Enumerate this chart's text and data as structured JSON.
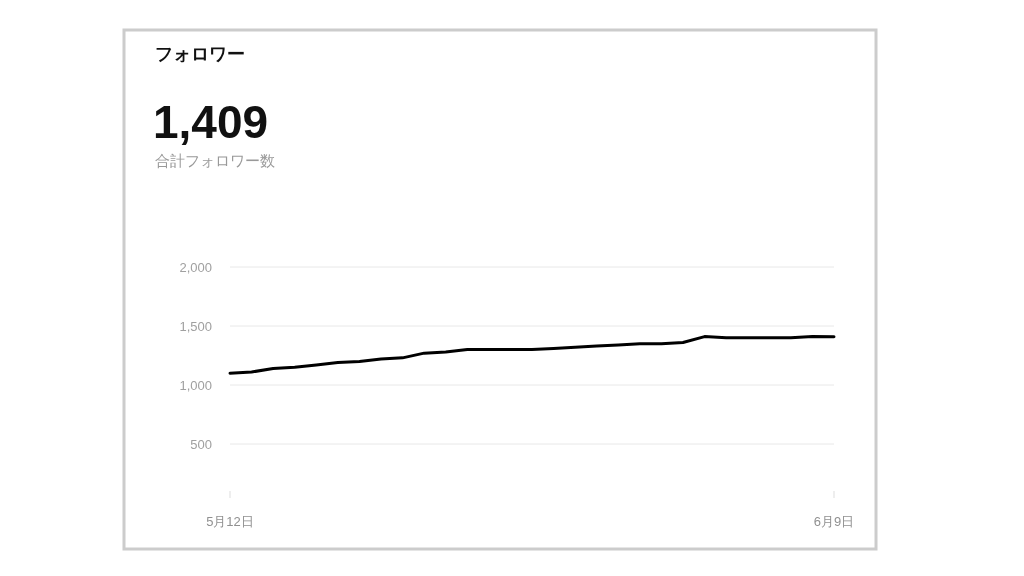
{
  "chart_data": {
    "type": "line",
    "title": "フォロワー",
    "annotations": [
      "1,409",
      "合計フォロワー数"
    ],
    "x": [
      "--05-12",
      "--05-13",
      "--05-14",
      "--05-15",
      "--05-16",
      "--05-17",
      "--05-18",
      "--05-19",
      "--05-20",
      "--05-21",
      "--05-22",
      "--05-23",
      "--05-24",
      "--05-25",
      "--05-26",
      "--05-27",
      "--05-28",
      "--05-29",
      "--05-30",
      "--05-31",
      "--06-01",
      "--06-02",
      "--06-03",
      "--06-04",
      "--06-05",
      "--06-06",
      "--06-07",
      "--06-08",
      "--06-09"
    ],
    "values": [
      1100,
      1110,
      1140,
      1150,
      1170,
      1190,
      1200,
      1220,
      1230,
      1270,
      1280,
      1300,
      1300,
      1300,
      1300,
      1310,
      1320,
      1330,
      1340,
      1350,
      1350,
      1360,
      1410,
      1400,
      1400,
      1400,
      1400,
      1410,
      1409
    ],
    "color": "#000000",
    "xlim": [
      "--05-12",
      "--06-09"
    ],
    "xticks": [
      {
        "value": "--05-12",
        "label": "5月12日"
      },
      {
        "value": "--06-09",
        "label": "6月9日"
      }
    ],
    "ylim": [
      500,
      2000
    ],
    "yticks": [
      500,
      {
        "value": 1000,
        "label": "1,000"
      },
      {
        "value": 1500,
        "label": "1,500"
      },
      {
        "value": 2000,
        "label": "2,000"
      }
    ],
    "grid": "y"
  }
}
